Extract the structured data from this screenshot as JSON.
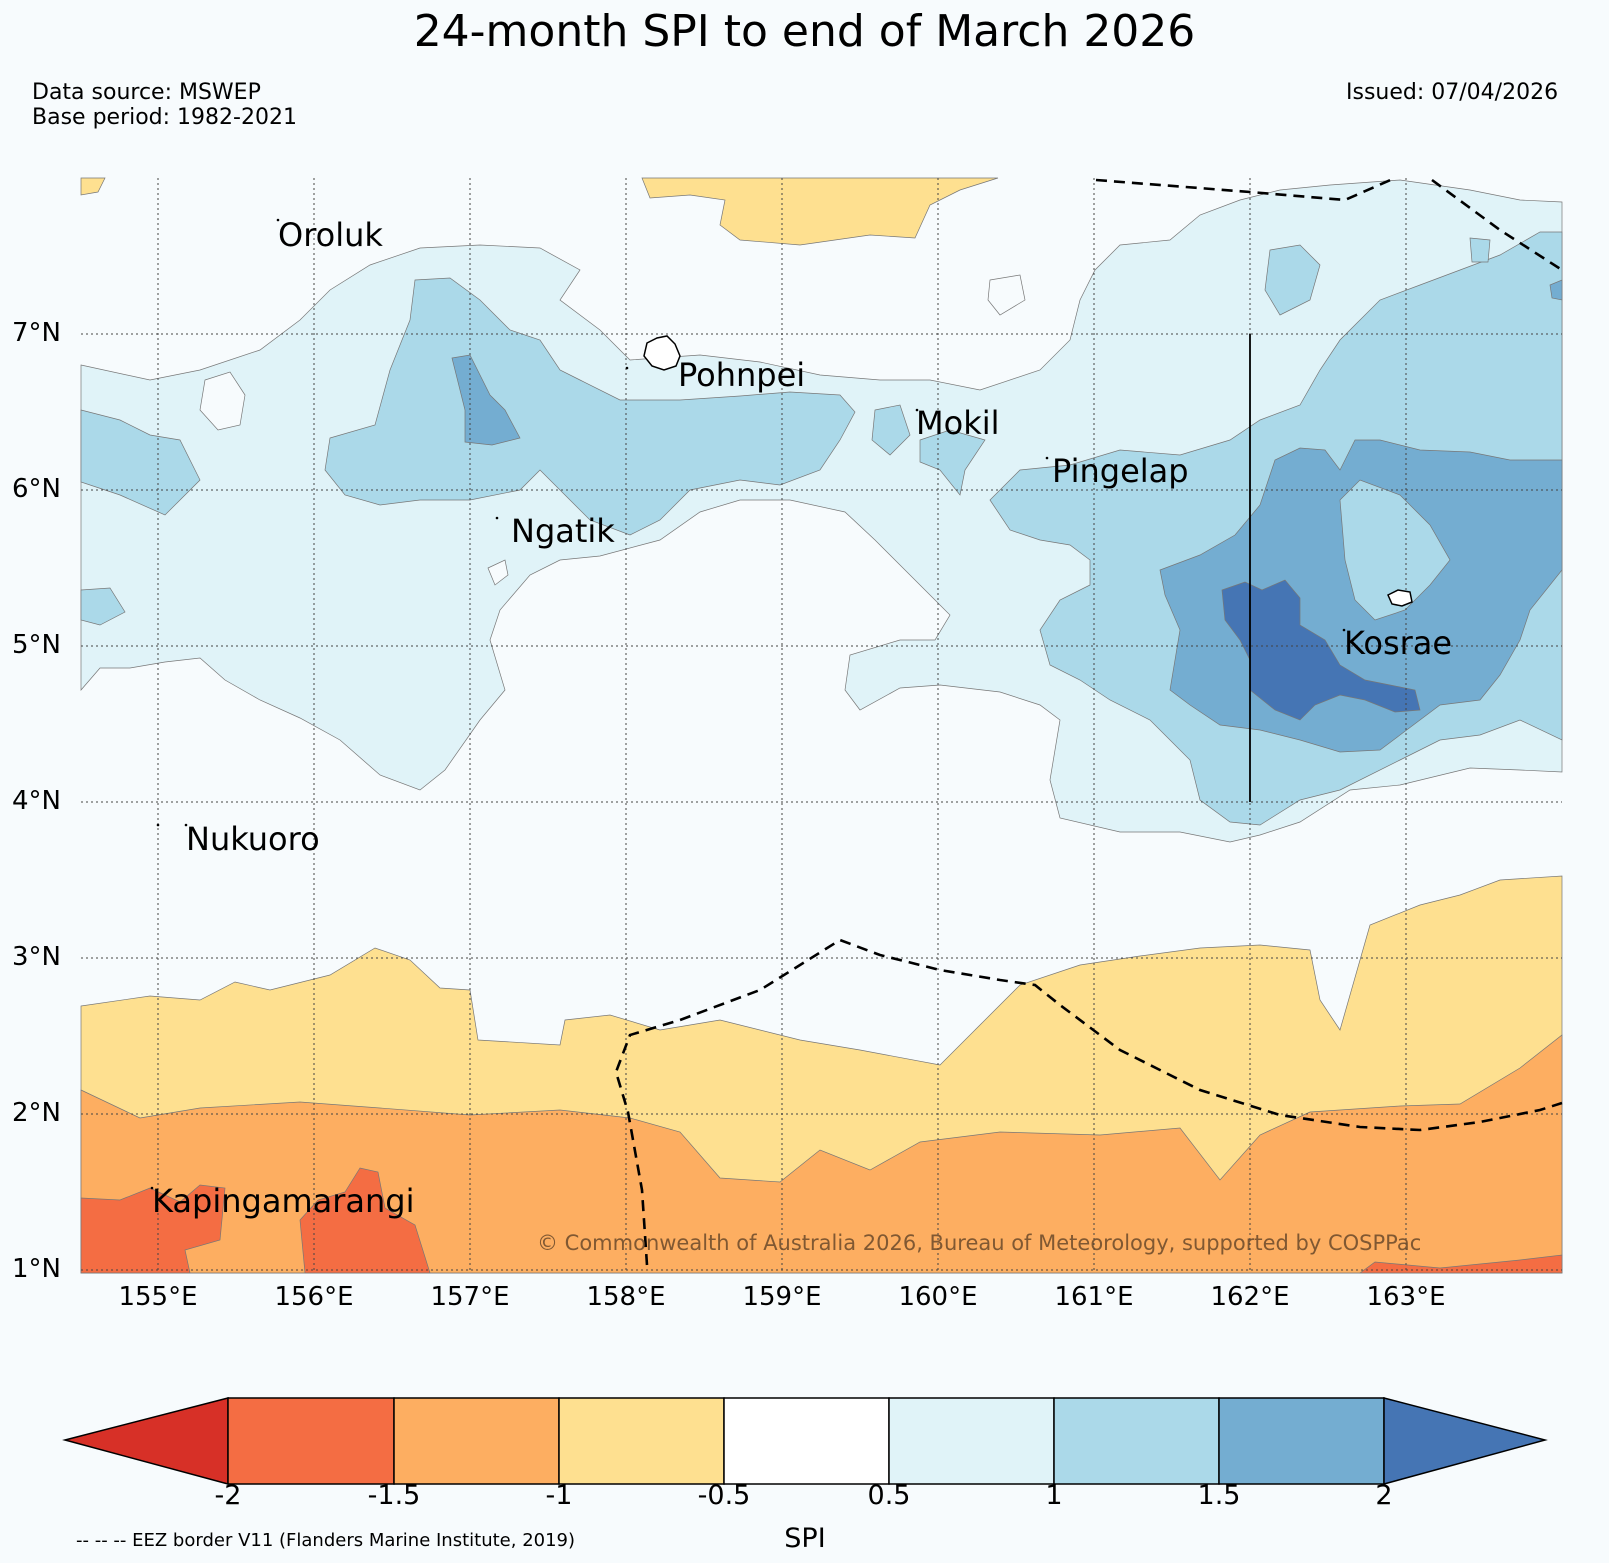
{
  "title": "24-month SPI to end of March 2026",
  "data_source": "Data source: MSWEP",
  "base_period": "Base period: 1982-2021",
  "issued": "Issued: 07/04/2026",
  "latitude_labels": [
    "7°N",
    "6°N",
    "5°N",
    "4°N",
    "3°N",
    "2°N",
    "1°N"
  ],
  "longitude_labels": [
    "155°E",
    "156°E",
    "157°E",
    "158°E",
    "159°E",
    "160°E",
    "161°E",
    "162°E",
    "163°E"
  ],
  "places": [
    "Oroluk",
    "Pohnpei",
    "Mokil",
    "Pingelap",
    "Ngatik",
    "Kosrae",
    "Nukuoro",
    "Kapingamarangi"
  ],
  "copyright": "© Commonwealth of Australia 2026, Bureau of Meteorology, supported by COSPPac",
  "colorbar": {
    "ticks": [
      "-2",
      "-1.5",
      "-1",
      "-0.5",
      "0.5",
      "1",
      "1.5",
      "2"
    ],
    "label": "SPI",
    "colors": [
      "#d73027",
      "#f46d43",
      "#fdae61",
      "#fee090",
      "#ffffff",
      "#e0f3f8",
      "#abd9e9",
      "#74add1",
      "#4575b4"
    ]
  },
  "eez_note": "-- -- -- EEZ border V11 (Flanders Marine Institute, 2019)"
}
